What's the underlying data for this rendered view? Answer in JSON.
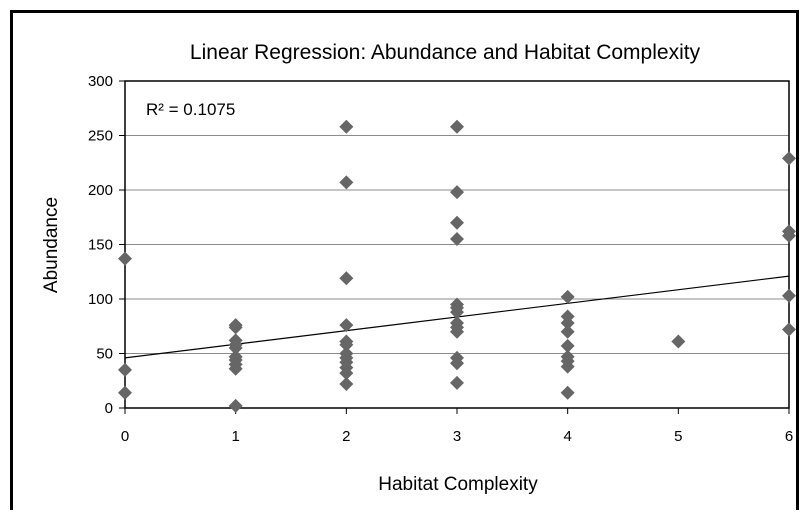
{
  "chart_data": {
    "type": "scatter",
    "title": "Linear Regression: Abundance and Habitat Complexity",
    "xlabel": "Habitat Complexity",
    "ylabel": "Abundance",
    "annotation": "R² = 0.1075",
    "xlim": [
      0,
      6
    ],
    "ylim": [
      0,
      300
    ],
    "xticks": [
      "0",
      "1",
      "2",
      "3",
      "4",
      "5",
      "6"
    ],
    "yticks": [
      "0",
      "50",
      "100",
      "150",
      "200",
      "250",
      "300"
    ],
    "grid": "horizontal",
    "marker_color": "#666666",
    "points": [
      [
        0,
        137
      ],
      [
        0,
        35
      ],
      [
        0,
        14
      ],
      [
        1,
        76
      ],
      [
        1,
        74
      ],
      [
        1,
        62
      ],
      [
        1,
        58
      ],
      [
        1,
        55
      ],
      [
        1,
        47
      ],
      [
        1,
        44
      ],
      [
        1,
        40
      ],
      [
        1,
        36
      ],
      [
        1,
        2
      ],
      [
        2,
        258
      ],
      [
        2,
        207
      ],
      [
        2,
        119
      ],
      [
        2,
        76
      ],
      [
        2,
        61
      ],
      [
        2,
        58
      ],
      [
        2,
        50
      ],
      [
        2,
        46
      ],
      [
        2,
        42
      ],
      [
        2,
        37
      ],
      [
        2,
        32
      ],
      [
        2,
        22
      ],
      [
        3,
        258
      ],
      [
        3,
        198
      ],
      [
        3,
        170
      ],
      [
        3,
        155
      ],
      [
        3,
        95
      ],
      [
        3,
        92
      ],
      [
        3,
        88
      ],
      [
        3,
        78
      ],
      [
        3,
        74
      ],
      [
        3,
        70
      ],
      [
        3,
        46
      ],
      [
        3,
        41
      ],
      [
        3,
        23
      ],
      [
        4,
        102
      ],
      [
        4,
        84
      ],
      [
        4,
        78
      ],
      [
        4,
        70
      ],
      [
        4,
        57
      ],
      [
        4,
        47
      ],
      [
        4,
        43
      ],
      [
        4,
        38
      ],
      [
        4,
        14
      ],
      [
        5,
        61
      ],
      [
        6,
        229
      ],
      [
        6,
        162
      ],
      [
        6,
        158
      ],
      [
        6,
        103
      ],
      [
        6,
        72
      ]
    ],
    "trendline": {
      "x": [
        0,
        6
      ],
      "y": [
        46,
        121
      ]
    }
  }
}
